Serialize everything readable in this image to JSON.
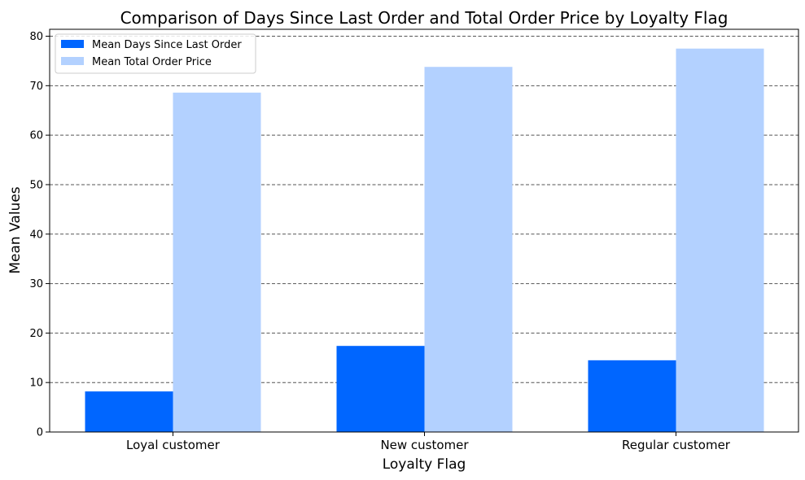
{
  "chart_data": {
    "type": "bar",
    "title": "Comparison of Days Since Last Order and Total Order Price by Loyalty Flag",
    "xlabel": "Loyalty Flag",
    "ylabel": "Mean Values",
    "categories": [
      "Loyal customer",
      "New customer",
      "Regular customer"
    ],
    "series": [
      {
        "name": "Mean Days Since Last Order",
        "color": "#0066ff",
        "values": [
          8.2,
          17.4,
          14.5
        ]
      },
      {
        "name": "Mean Total Order Price",
        "color": "#b3d1ff",
        "values": [
          68.6,
          73.8,
          77.5
        ]
      }
    ],
    "ylim": [
      0,
      81.4
    ],
    "yticks": [
      0,
      10,
      20,
      30,
      40,
      50,
      60,
      70,
      80
    ],
    "grid": {
      "axis": "y",
      "style": "dashed",
      "color": "#555555"
    },
    "legend": "top-left"
  }
}
